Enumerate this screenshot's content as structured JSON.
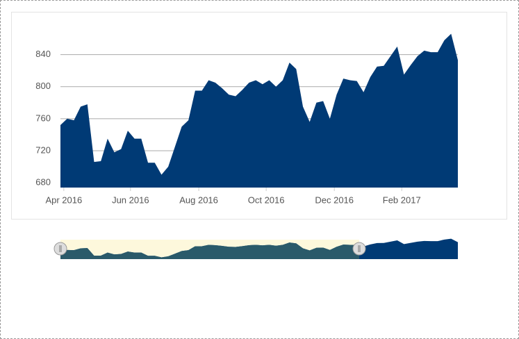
{
  "chart_data": {
    "type": "area",
    "color": "#003a75",
    "navigator_color": "#2a5a6a",
    "grid": true,
    "values": [
      752,
      760,
      758,
      775,
      778,
      706,
      707,
      735,
      718,
      722,
      745,
      735,
      735,
      705,
      705,
      690,
      700,
      725,
      750,
      758,
      795,
      795,
      808,
      805,
      798,
      790,
      788,
      796,
      805,
      808,
      803,
      808,
      800,
      808,
      830,
      822,
      775,
      756,
      780,
      782,
      760,
      790,
      810,
      808,
      807,
      793,
      812,
      825,
      826,
      838,
      850,
      815,
      827,
      838,
      845,
      843,
      843,
      858,
      866,
      833
    ],
    "xlim": [
      0,
      59
    ],
    "xticks": [
      {
        "value": 0.5,
        "label": "Apr 2016"
      },
      {
        "value": 10.4,
        "label": "Jun 2016"
      },
      {
        "value": 20.535,
        "label": "Aug 2016"
      },
      {
        "value": 30.545,
        "label": "Oct 2016"
      },
      {
        "value": 40.66,
        "label": "Dec 2016"
      },
      {
        "value": 50.67,
        "label": "Feb 2017"
      }
    ],
    "ylim": [
      674,
      870
    ],
    "yticks": [
      680,
      720,
      760,
      800,
      840
    ]
  }
}
